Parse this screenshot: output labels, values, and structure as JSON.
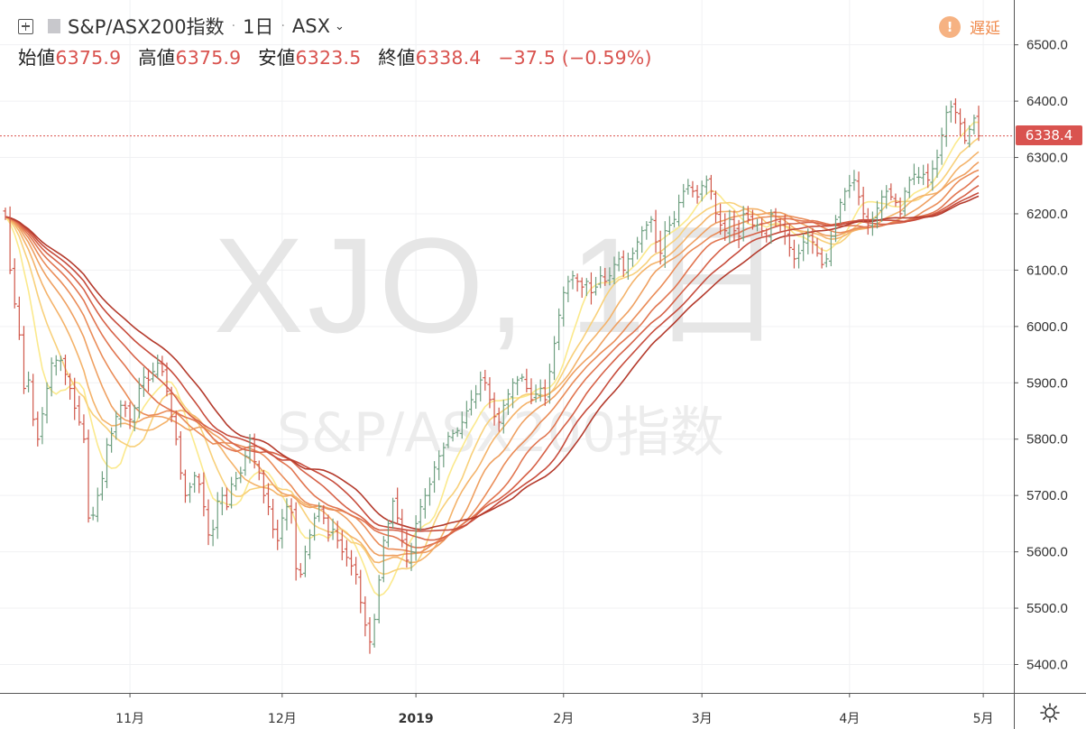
{
  "header": {
    "symbol": "S&P/ASX200指数",
    "interval": "1日",
    "exchange": "ASX",
    "delay_label": "遅延",
    "delay_icon": "!"
  },
  "ohlc": {
    "open_label": "始値",
    "open": "6375.9",
    "high_label": "高値",
    "high": "6375.9",
    "low_label": "安値",
    "low": "6323.5",
    "close_label": "終値",
    "close": "6338.4",
    "change": "−37.5 (−0.59%)"
  },
  "last_price_tag": "6338.4",
  "watermark": {
    "line1": "XJO, 1日",
    "line2": "S&P/ASX200指数"
  },
  "colors": {
    "up": "#6e9f80",
    "down": "#d0574a",
    "last_price": "#d9534f"
  },
  "chart_data": {
    "type": "ohlc",
    "title": "S&P/ASX200指数",
    "ylim": [
      5360,
      6550
    ],
    "y_ticks": [
      "6500.0",
      "6400.0",
      "6300.0",
      "6200.0",
      "6100.0",
      "6000.0",
      "5900.0",
      "5800.0",
      "5700.0",
      "5600.0",
      "5500.0",
      "5400.0"
    ],
    "x_ticks": [
      {
        "label": "11月",
        "index": 27
      },
      {
        "label": "12月",
        "index": 60
      },
      {
        "label": "2019",
        "index": 89
      },
      {
        "label": "2月",
        "index": 121
      },
      {
        "label": "3月",
        "index": 151
      },
      {
        "label": "4月",
        "index": 183
      },
      {
        "label": "5月",
        "index": 212
      }
    ],
    "closes": [
      6195,
      6100,
      6040,
      5985,
      5890,
      5905,
      5835,
      5800,
      5845,
      5890,
      5935,
      5940,
      5940,
      5915,
      5890,
      5855,
      5830,
      5800,
      5660,
      5665,
      5700,
      5730,
      5790,
      5810,
      5840,
      5860,
      5855,
      5835,
      5855,
      5890,
      5910,
      5905,
      5920,
      5935,
      5920,
      5885,
      5840,
      5800,
      5740,
      5700,
      5715,
      5735,
      5720,
      5680,
      5630,
      5640,
      5690,
      5700,
      5680,
      5720,
      5730,
      5740,
      5770,
      5800,
      5760,
      5740,
      5700,
      5680,
      5640,
      5620,
      5660,
      5680,
      5670,
      5570,
      5560,
      5600,
      5630,
      5660,
      5680,
      5660,
      5630,
      5640,
      5620,
      5600,
      5590,
      5575,
      5560,
      5510,
      5470,
      5440,
      5480,
      5550,
      5620,
      5650,
      5690,
      5660,
      5620,
      5585,
      5600,
      5650,
      5680,
      5700,
      5720,
      5750,
      5770,
      5785,
      5805,
      5810,
      5815,
      5830,
      5850,
      5870,
      5880,
      5905,
      5900,
      5870,
      5840,
      5830,
      5860,
      5880,
      5900,
      5905,
      5910,
      5890,
      5870,
      5880,
      5890,
      5870,
      5920,
      5970,
      6020,
      6060,
      6080,
      6090,
      6080,
      6070,
      6080,
      6060,
      6070,
      6090,
      6080,
      6090,
      6110,
      6120,
      6100,
      6120,
      6130,
      6150,
      6170,
      6180,
      6190,
      6150,
      6130,
      6170,
      6180,
      6190,
      6220,
      6240,
      6250,
      6240,
      6230,
      6250,
      6260,
      6240,
      6200,
      6180,
      6170,
      6190,
      6170,
      6160,
      6200,
      6190,
      6180,
      6180,
      6170,
      6160,
      6200,
      6190,
      6180,
      6160,
      6140,
      6120,
      6130,
      6150,
      6160,
      6150,
      6130,
      6110,
      6120,
      6160,
      6190,
      6220,
      6240,
      6250,
      6260,
      6230,
      6200,
      6180,
      6190,
      6210,
      6230,
      6240,
      6230,
      6220,
      6200,
      6240,
      6260,
      6270,
      6265,
      6270,
      6260,
      6280,
      6300,
      6340,
      6380,
      6390,
      6380,
      6360,
      6330,
      6350,
      6370,
      6338.4
    ],
    "ma_lengths": [
      8,
      13,
      18,
      23,
      28,
      33,
      38,
      43,
      48
    ],
    "ma_colors": [
      "#fbe98c",
      "#f8d07a",
      "#f4b36a",
      "#efa061",
      "#ea8c58",
      "#e17550",
      "#d66147",
      "#c74c3c",
      "#b43a2c"
    ]
  }
}
